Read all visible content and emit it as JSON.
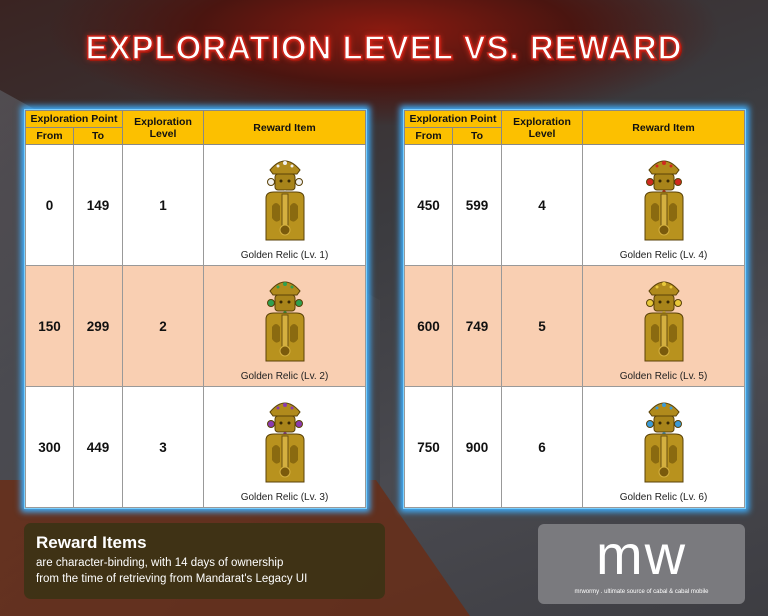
{
  "title": "EXPLORATION LEVEL VS. REWARD",
  "headers": {
    "point": "Exploration Point",
    "from": "From",
    "to": "To",
    "level": "Exploration Level",
    "reward": "Reward Item"
  },
  "tables": [
    {
      "rows": [
        {
          "from": "0",
          "to": "149",
          "level": "1",
          "reward": "Golden Relic (Lv. 1)",
          "gem": "#f0f0f0"
        },
        {
          "from": "150",
          "to": "299",
          "level": "2",
          "reward": "Golden Relic (Lv. 2)",
          "gem": "#2fa050"
        },
        {
          "from": "300",
          "to": "449",
          "level": "3",
          "reward": "Golden Relic (Lv. 3)",
          "gem": "#8a3ab0"
        }
      ]
    },
    {
      "rows": [
        {
          "from": "450",
          "to": "599",
          "level": "4",
          "reward": "Golden Relic (Lv. 4)",
          "gem": "#d02a20"
        },
        {
          "from": "600",
          "to": "749",
          "level": "5",
          "reward": "Golden Relic (Lv. 5)",
          "gem": "#e8c83a"
        },
        {
          "from": "750",
          "to": "900",
          "level": "6",
          "reward": "Golden Relic (Lv. 6)",
          "gem": "#3a9ad8"
        }
      ]
    }
  ],
  "note": {
    "title": "Reward Items",
    "line1": "are character-binding, with 14 days of ownership",
    "line2": "from the time of retrieving from Mandarat's Legacy UI"
  },
  "logo": {
    "mark": "mw",
    "tagline": "mrwormy . ultimate source of cabal & cabal mobile"
  },
  "colors": {
    "header": "#fcc000",
    "alt_row": "#f9cfb2",
    "glow": "#3fb0ff"
  }
}
